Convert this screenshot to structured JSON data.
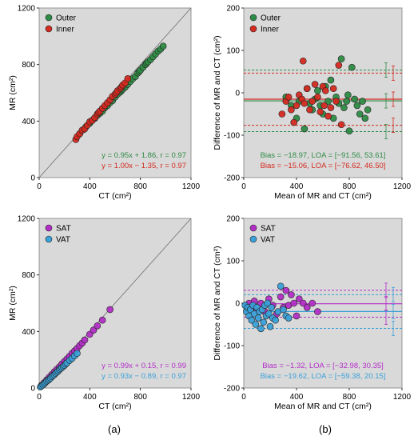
{
  "figure": {
    "panel_labels": [
      "(a)",
      "(b)"
    ]
  },
  "chart_data": [
    {
      "id": "a1",
      "type": "scatter",
      "xlabel": "CT (cm²)",
      "ylabel": "MR (cm²)",
      "xlim": [
        0,
        1200
      ],
      "ylim": [
        0,
        1200
      ],
      "xticks": [
        0,
        400,
        800,
        1200
      ],
      "yticks": [
        0,
        400,
        800,
        1200
      ],
      "grid": false,
      "identity_line": true,
      "legend_position": "top-left",
      "series": [
        {
          "name": "Outer",
          "color": "#2e8b45",
          "x": [
            320,
            350,
            370,
            400,
            420,
            440,
            460,
            480,
            500,
            520,
            540,
            560,
            580,
            600,
            620,
            640,
            650,
            660,
            680,
            700,
            720,
            740,
            760,
            780,
            790,
            800,
            820,
            840,
            850,
            860,
            880,
            900,
            920,
            940,
            960,
            980
          ],
          "y": [
            310,
            340,
            360,
            385,
            405,
            420,
            440,
            455,
            470,
            495,
            510,
            530,
            545,
            570,
            590,
            605,
            615,
            625,
            640,
            660,
            680,
            700,
            715,
            740,
            750,
            760,
            780,
            800,
            810,
            820,
            835,
            855,
            875,
            895,
            910,
            930
          ]
        },
        {
          "name": "Inner",
          "color": "#d42a20",
          "x": [
            290,
            300,
            320,
            340,
            360,
            380,
            400,
            420,
            440,
            460,
            470,
            480,
            500,
            520,
            540,
            560,
            580,
            600,
            610,
            620,
            640,
            650,
            660,
            680,
            700
          ],
          "y": [
            270,
            290,
            310,
            335,
            345,
            370,
            395,
            405,
            425,
            450,
            460,
            470,
            490,
            510,
            530,
            550,
            575,
            590,
            600,
            615,
            630,
            640,
            655,
            670,
            700
          ]
        }
      ],
      "annotations": [
        {
          "text": "y = 0.95x + 1.86, r = 0.97",
          "color": "#2e8b45"
        },
        {
          "text": "y = 1.00x − 1.35, r = 0.97",
          "color": "#d42a20"
        }
      ]
    },
    {
      "id": "b1",
      "type": "scatter",
      "xlabel": "Mean of MR and CT (cm²)",
      "ylabel": "Difference of MR and CT (cm²)",
      "xlim": [
        0,
        1200
      ],
      "ylim": [
        -200,
        200
      ],
      "xticks": [
        0,
        400,
        800,
        1200
      ],
      "yticks": [
        -200,
        -100,
        0,
        100,
        200
      ],
      "grid": false,
      "legend_position": "top-left",
      "series": [
        {
          "name": "Outer",
          "color": "#2e8b45",
          "x": [
            320,
            360,
            400,
            420,
            460,
            480,
            500,
            520,
            540,
            560,
            580,
            600,
            620,
            640,
            660,
            680,
            700,
            720,
            740,
            760,
            780,
            790,
            800,
            820,
            840,
            860,
            880,
            900,
            920,
            940
          ],
          "y": [
            -10,
            -30,
            -60,
            -20,
            -85,
            10,
            -25,
            -40,
            -15,
            5,
            -30,
            -50,
            15,
            -20,
            30,
            -60,
            -10,
            -25,
            80,
            -35,
            -20,
            -5,
            -90,
            60,
            -15,
            -30,
            -50,
            -20,
            -60,
            -40
          ]
        },
        {
          "name": "Inner",
          "color": "#d42a20",
          "x": [
            290,
            320,
            340,
            360,
            380,
            400,
            420,
            440,
            450,
            460,
            480,
            500,
            520,
            540,
            560,
            580,
            600,
            610,
            620,
            640,
            660,
            680,
            700,
            720,
            740
          ],
          "y": [
            -50,
            -20,
            -10,
            -40,
            -70,
            -30,
            -5,
            -15,
            75,
            -25,
            10,
            -40,
            -20,
            20,
            -10,
            -45,
            15,
            -30,
            5,
            -55,
            -35,
            10,
            -20,
            65,
            -75
          ]
        }
      ],
      "lines": [
        {
          "series": "Outer",
          "mean": -18.97,
          "loa_low": -91.56,
          "loa_high": 53.61
        },
        {
          "series": "Inner",
          "mean": -15.06,
          "loa_low": -76.62,
          "loa_high": 46.5
        }
      ],
      "annotations": [
        {
          "text": "Bias = −18.97, LOA = [−91.56, 53.61]",
          "color": "#2e8b45"
        },
        {
          "text": "Bias = −15.06, LOA = [−76.62, 46.50]",
          "color": "#d42a20"
        }
      ]
    },
    {
      "id": "a2",
      "type": "scatter",
      "xlabel": "CT (cm²)",
      "ylabel": "MR (cm²)",
      "xlim": [
        0,
        1200
      ],
      "ylim": [
        0,
        1200
      ],
      "xticks": [
        0,
        400,
        800,
        1200
      ],
      "yticks": [
        0,
        400,
        800,
        1200
      ],
      "grid": false,
      "identity_line": true,
      "legend_position": "top-left",
      "series": [
        {
          "name": "SAT",
          "color": "#b32ec7",
          "x": [
            20,
            40,
            60,
            80,
            100,
            120,
            140,
            160,
            180,
            200,
            220,
            240,
            260,
            280,
            300,
            320,
            340,
            360,
            400,
            430,
            460,
            500,
            560
          ],
          "y": [
            20,
            38,
            58,
            76,
            95,
            115,
            132,
            150,
            170,
            188,
            206,
            225,
            245,
            262,
            280,
            300,
            318,
            340,
            380,
            410,
            440,
            480,
            555
          ]
        },
        {
          "name": "VAT",
          "color": "#3aa0d8",
          "x": [
            10,
            20,
            30,
            40,
            50,
            60,
            70,
            80,
            90,
            100,
            110,
            120,
            130,
            140,
            150,
            160,
            170,
            180,
            190,
            200,
            210,
            220,
            240,
            260,
            280,
            300
          ],
          "y": [
            8,
            15,
            22,
            30,
            40,
            48,
            55,
            62,
            70,
            80,
            88,
            95,
            105,
            112,
            120,
            130,
            138,
            145,
            152,
            160,
            170,
            178,
            195,
            210,
            228,
            245
          ]
        }
      ],
      "annotations": [
        {
          "text": "y = 0.99x + 0.15, r = 0.99",
          "color": "#b32ec7"
        },
        {
          "text": "y = 0.93x − 0.89, r = 0.97",
          "color": "#3aa0d8"
        }
      ]
    },
    {
      "id": "b2",
      "type": "scatter",
      "xlabel": "Mean of MR and CT (cm²)",
      "ylabel": "Difference of MR and CT (cm²)",
      "xlim": [
        0,
        1200
      ],
      "ylim": [
        -200,
        200
      ],
      "xticks": [
        0,
        400,
        800,
        1200
      ],
      "yticks": [
        -200,
        -100,
        0,
        100,
        200
      ],
      "grid": false,
      "legend_position": "top-left",
      "series": [
        {
          "name": "SAT",
          "color": "#b32ec7",
          "x": [
            20,
            40,
            60,
            80,
            100,
            130,
            160,
            190,
            220,
            250,
            280,
            300,
            320,
            340,
            360,
            380,
            400,
            420,
            450,
            480,
            520,
            560
          ],
          "y": [
            -5,
            0,
            -10,
            5,
            -15,
            0,
            -20,
            10,
            -5,
            -25,
            15,
            -10,
            30,
            -5,
            20,
            0,
            -30,
            10,
            0,
            -10,
            0,
            -20
          ]
        },
        {
          "name": "VAT",
          "color": "#3aa0d8",
          "x": [
            10,
            20,
            30,
            40,
            50,
            60,
            70,
            80,
            90,
            100,
            110,
            120,
            130,
            140,
            150,
            160,
            170,
            180,
            190,
            200,
            210,
            220,
            240,
            260,
            280,
            300,
            320,
            340
          ],
          "y": [
            -5,
            -20,
            -10,
            -30,
            -15,
            -40,
            -5,
            -25,
            -50,
            -10,
            -35,
            -20,
            -60,
            -15,
            -45,
            -5,
            -30,
            0,
            -25,
            -55,
            -10,
            -35,
            -40,
            -20,
            40,
            -15,
            -30,
            -35
          ]
        }
      ],
      "lines": [
        {
          "series": "SAT",
          "mean": -1.32,
          "loa_low": -32.98,
          "loa_high": 30.35
        },
        {
          "series": "VAT",
          "mean": -19.62,
          "loa_low": -59.38,
          "loa_high": 20.15
        }
      ],
      "annotations": [
        {
          "text": "Bias = −1.32, LOA = [−32.98, 30.35]",
          "color": "#b32ec7"
        },
        {
          "text": "Bias = −19.62, LOA = [−59.38, 20.15]",
          "color": "#3aa0d8"
        }
      ]
    }
  ]
}
